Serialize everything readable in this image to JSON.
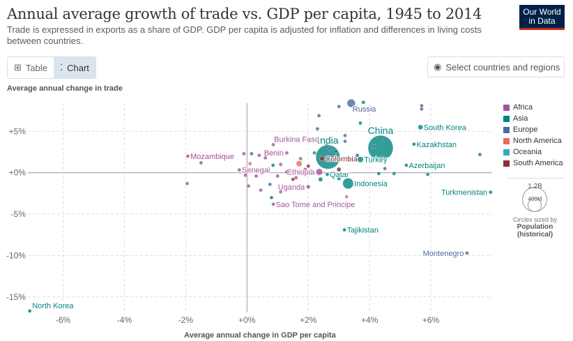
{
  "header": {
    "title": "Annual average growth of trade vs. GDP per capita, 1945 to 2014",
    "subtitle": "Trade is expressed in exports as a share of GDP. GDP per capita is adjusted for inflation and differences in living costs between countries.",
    "logo": "Our World in Data"
  },
  "controls": {
    "table_label": "Table",
    "chart_label": "Chart",
    "select_label": "Select countries and regions"
  },
  "legend": {
    "regions": [
      {
        "name": "Africa",
        "color": "#a2559c"
      },
      {
        "name": "Asia",
        "color": "#00847e"
      },
      {
        "name": "Europe",
        "color": "#4c6a9c"
      },
      {
        "name": "North America",
        "color": "#e56e5a"
      },
      {
        "name": "Oceania",
        "color": "#38aaba"
      },
      {
        "name": "South America",
        "color": "#883039"
      }
    ],
    "size_big": "1.2B",
    "size_small": "400M",
    "size_note": "Circles sized by",
    "size_var": "Population",
    "size_var2": "(historical)"
  },
  "chart_data": {
    "type": "scatter",
    "title": "Annual average growth of trade vs. GDP per capita, 1945 to 2014",
    "xlabel": "Average annual change in GDP per capita",
    "ylabel": "Average annual change in trade",
    "xlim": [
      -7.15,
      8.0
    ],
    "ylim": [
      -16.2,
      8.4
    ],
    "xticks": [
      {
        "v": -6,
        "l": "-6%"
      },
      {
        "v": -4,
        "l": "-4%"
      },
      {
        "v": -2,
        "l": "-2%"
      },
      {
        "v": 0,
        "l": "+0%"
      },
      {
        "v": 2,
        "l": "+2%"
      },
      {
        "v": 4,
        "l": "+4%"
      },
      {
        "v": 6,
        "l": "+6%"
      }
    ],
    "yticks": [
      {
        "v": 5,
        "l": "+5%"
      },
      {
        "v": 0,
        "l": "+0%"
      },
      {
        "v": -5,
        "l": "-5%"
      },
      {
        "v": -10,
        "l": "-10%"
      },
      {
        "v": -15,
        "l": "-15%"
      }
    ],
    "points": [
      [
        "China",
        "Asia",
        4.36,
        3.0,
        1300
      ],
      [
        "India",
        "Asia",
        2.64,
        1.9,
        1200
      ],
      [
        "Russia",
        "Europe",
        3.4,
        8.4,
        140
      ],
      [
        "South Korea",
        "Asia",
        5.66,
        5.5,
        50
      ],
      [
        "Kazakhstan",
        "Asia",
        5.45,
        3.45,
        16
      ],
      [
        "Azerbaijan",
        "Asia",
        5.2,
        0.9,
        9
      ],
      [
        "Turkmenistan",
        "Asia",
        7.95,
        -2.35,
        5
      ],
      [
        "Tajikistan",
        "Asia",
        3.18,
        -6.9,
        8
      ],
      [
        "Montenegro",
        "Europe",
        7.18,
        -9.7,
        1
      ],
      [
        "North Korea",
        "Asia",
        -7.09,
        -16.7,
        24
      ],
      [
        "Mozambique",
        "Africa",
        -1.93,
        2.0,
        25
      ],
      [
        "Senegal",
        "Africa",
        -0.25,
        0.34,
        13
      ],
      [
        "Benin",
        "Africa",
        1.3,
        2.4,
        10
      ],
      [
        "Burkina Faso",
        "Africa",
        0.86,
        3.4,
        17
      ],
      [
        "Ethiopia",
        "Africa",
        2.36,
        0.1,
        90
      ],
      [
        "Uganda",
        "Africa",
        2.0,
        -1.7,
        35
      ],
      [
        "Sao Tome and Principe",
        "Africa",
        0.86,
        -3.8,
        0.2
      ],
      [
        "Colombia",
        "South America",
        2.45,
        1.7,
        45
      ],
      [
        "Qatar",
        "Asia",
        2.62,
        -0.2,
        2
      ],
      [
        "Indonesia",
        "Asia",
        3.3,
        -1.3,
        240
      ],
      [
        "Turkey",
        "Asia",
        3.7,
        1.6,
        75
      ],
      [
        "",
        "Africa",
        -1.95,
        -1.3,
        3
      ],
      [
        "",
        "Africa",
        -1.5,
        1.2,
        3
      ],
      [
        "",
        "Africa",
        -0.6,
        1.8,
        3
      ],
      [
        "",
        "Africa",
        -0.1,
        2.3,
        3
      ],
      [
        "",
        "Europe",
        0.15,
        2.3,
        3
      ],
      [
        "",
        "Africa",
        0.4,
        2.1,
        3
      ],
      [
        "",
        "Africa",
        0.6,
        1.8,
        3
      ],
      [
        "",
        "North America",
        0.1,
        1.1,
        3
      ],
      [
        "",
        "Asia",
        0.85,
        0.9,
        3
      ],
      [
        "",
        "Africa",
        1.1,
        1.0,
        3
      ],
      [
        "",
        "Africa",
        -0.05,
        -0.3,
        3
      ],
      [
        "",
        "Africa",
        0.05,
        -1.6,
        3
      ],
      [
        "",
        "Africa",
        0.45,
        -2.1,
        3
      ],
      [
        "",
        "Europe",
        0.75,
        -1.4,
        3
      ],
      [
        "",
        "Asia",
        0.8,
        -3.0,
        12
      ],
      [
        "",
        "Africa",
        1.1,
        -2.3,
        8
      ],
      [
        "",
        "South America",
        1.3,
        0.1,
        6
      ],
      [
        "",
        "Africa",
        1.6,
        -0.6,
        20
      ],
      [
        "",
        "North America",
        1.7,
        1.1,
        70
      ],
      [
        "",
        "Africa",
        1.75,
        1.7,
        25
      ],
      [
        "",
        "South America",
        2.0,
        0.8,
        12
      ],
      [
        "",
        "Asia",
        2.1,
        0.2,
        8
      ],
      [
        "",
        "Europe",
        2.2,
        2.4,
        20
      ],
      [
        "",
        "Asia",
        2.4,
        -0.8,
        40
      ],
      [
        "",
        "Europe",
        2.6,
        3.5,
        8
      ],
      [
        "",
        "Europe",
        2.7,
        2.9,
        20
      ],
      [
        "",
        "Asia",
        2.9,
        2.6,
        10
      ],
      [
        "",
        "South America",
        3.0,
        0.4,
        40
      ],
      [
        "",
        "North America",
        3.05,
        -0.2,
        30
      ],
      [
        "",
        "Europe",
        3.2,
        3.8,
        10
      ],
      [
        "",
        "Europe",
        3.2,
        4.5,
        3
      ],
      [
        "",
        "Asia",
        3.0,
        -0.7,
        30
      ],
      [
        "",
        "North America",
        3.25,
        -2.9,
        3
      ],
      [
        "",
        "Europe",
        2.35,
        6.9,
        3
      ],
      [
        "",
        "Europe",
        2.3,
        5.3,
        3
      ],
      [
        "",
        "Europe",
        3.0,
        8.0,
        3
      ],
      [
        "",
        "Asia",
        3.7,
        6.0,
        3
      ],
      [
        "",
        "Europe",
        4.15,
        3.2,
        3
      ],
      [
        "",
        "Asia",
        4.4,
        1.8,
        3
      ],
      [
        "",
        "Europe",
        4.5,
        0.5,
        3
      ],
      [
        "",
        "Asia",
        4.3,
        -0.1,
        3
      ],
      [
        "",
        "Asia",
        4.8,
        -0.1,
        3
      ],
      [
        "",
        "Europe",
        5.7,
        7.7,
        3
      ],
      [
        "",
        "Europe",
        5.7,
        8.1,
        3
      ],
      [
        "",
        "Asia",
        7.6,
        2.2,
        3
      ],
      [
        "",
        "Asia",
        5.9,
        -0.2,
        3
      ],
      [
        "",
        "Asia",
        3.8,
        8.5,
        3
      ],
      [
        "",
        "Africa",
        0.3,
        -0.4,
        5
      ],
      [
        "",
        "Africa",
        1.0,
        -0.4,
        6
      ],
      [
        "",
        "South America",
        1.5,
        -0.8,
        8
      ],
      [
        "",
        "Africa",
        1.9,
        0.4,
        5
      ],
      [
        "",
        "Asia",
        3.35,
        1.7,
        15
      ],
      [
        "",
        "Asia",
        3.6,
        2.1,
        5
      ],
      [
        "",
        "Europe",
        2.8,
        1.9,
        10
      ]
    ]
  }
}
